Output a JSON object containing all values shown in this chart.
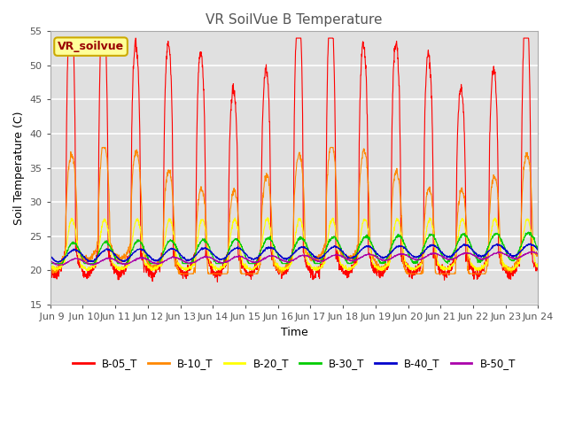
{
  "title": "VR SoilVue B Temperature",
  "xlabel": "Time",
  "ylabel": "Soil Temperature (C)",
  "ylim": [
    15,
    55
  ],
  "x_tick_labels": [
    "Jun 9",
    "Jun\n10Jun",
    "11Jun",
    "12Jun",
    "13Jun",
    "14Jun",
    "15Jun",
    "16Jun",
    "17Jun",
    "18Jun",
    "19Jun",
    "20Jun",
    "21Jun",
    "22Jun",
    "23Jun",
    "24"
  ],
  "x_tick_labels2": [
    " Jun 9",
    " Jun 10",
    "Jun 11",
    "Jun 12",
    "Jun 13",
    "Jun 14",
    "Jun 15",
    "Jun 16",
    "Jun 17",
    "Jun 18",
    "Jun 19",
    "Jun 20",
    "Jun 21",
    "Jun 22",
    "Jun 23",
    "Jun 24"
  ],
  "legend_label": "VR_soilvue",
  "series_names": [
    "B-05_T",
    "B-10_T",
    "B-20_T",
    "B-30_T",
    "B-40_T",
    "B-50_T"
  ],
  "series_colors": [
    "#ff0000",
    "#ff8800",
    "#ffff00",
    "#00cc00",
    "#0000cc",
    "#aa00aa"
  ],
  "fig_bg_color": "#ffffff",
  "plot_bg_color": "#e0e0e0",
  "title_fontsize": 11,
  "axis_fontsize": 9,
  "tick_fontsize": 8,
  "legend_box_facecolor": "#ffff99",
  "legend_box_edgecolor": "#ccaa00",
  "legend_text_color": "#990000",
  "grid_color": "#ffffff",
  "n_points": 2000
}
